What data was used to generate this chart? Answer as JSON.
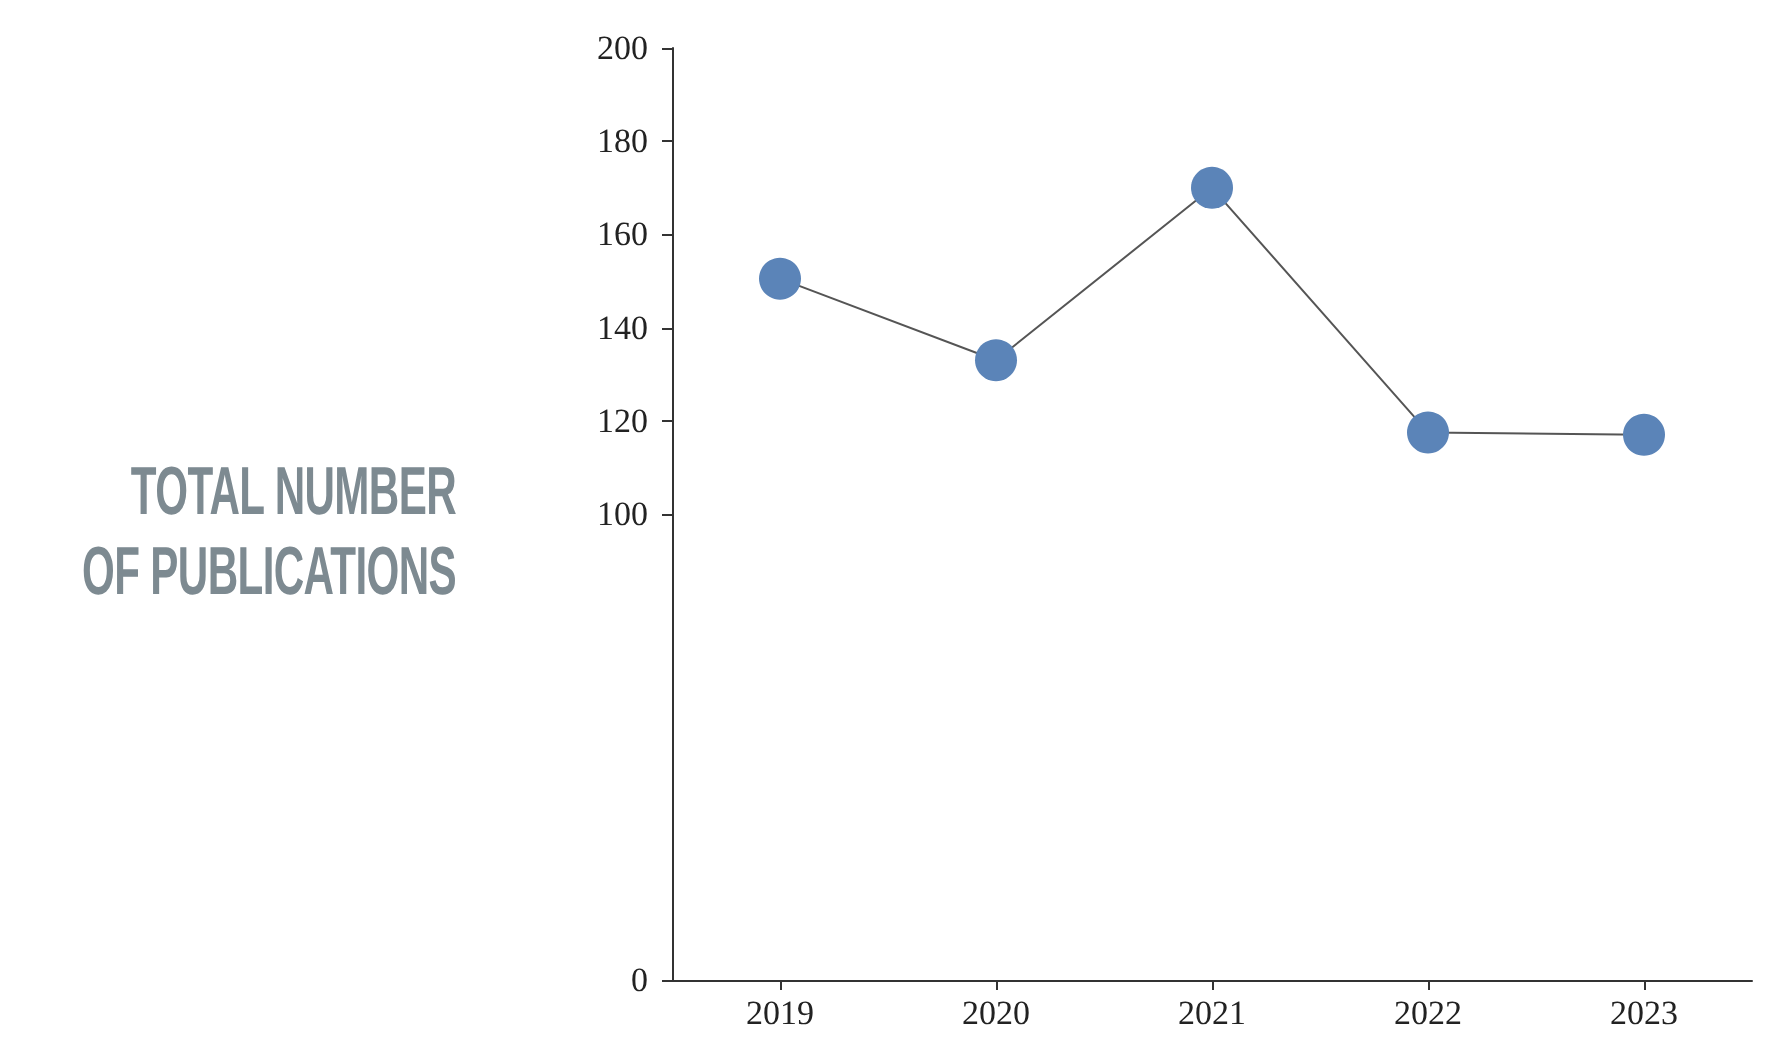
{
  "chart_data": {
    "type": "line",
    "ylabel": "TOTAL NUMBER OF PUBLICATIONS",
    "categories": [
      "2019",
      "2020",
      "2021",
      "2022",
      "2023"
    ],
    "series": [
      {
        "color": "#5b84b8",
        "values": [
          150.5,
          133,
          170,
          117.5,
          117
        ]
      }
    ],
    "ylim": [
      0,
      200
    ],
    "yticks": [
      0,
      100,
      120,
      140,
      160,
      180,
      200
    ],
    "grid": false,
    "marker": "circle",
    "line_style": "solid"
  }
}
